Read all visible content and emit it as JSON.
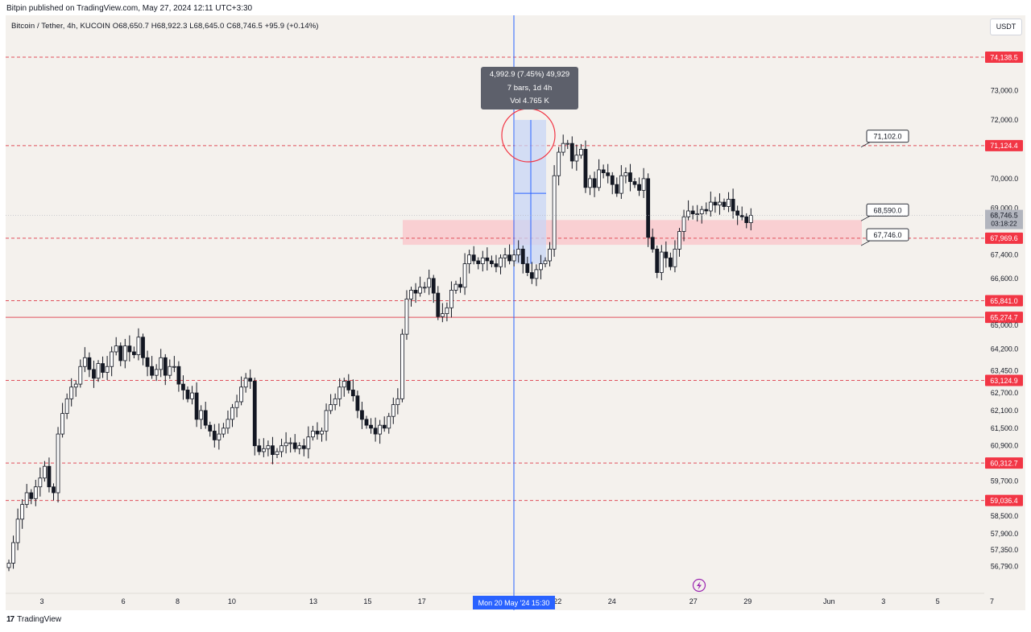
{
  "publish_line": "Bitpin published on TradingView.com, May 27, 2024 12:11 UTC+3:30",
  "symbol_line": "Bitcoin / Tether, 4h, KUCOIN  O68,650.7  H68,922.3  L68,645.0  C68,746.5  +95.9 (+0.14%)",
  "currency": "USDT",
  "footer_brand": "TradingView",
  "footer_logo": "17",
  "measure": {
    "line1": "4,992.9 (7.45%) 49,929",
    "line2": "7 bars, 1d 4h",
    "line3": "Vol 4.765 K"
  },
  "crosshair_date_label": "Mon 20 May '24   15:30",
  "current_price": {
    "value": "68,746.5",
    "countdown": "03:18:22"
  },
  "colors": {
    "accent_red": "#f23645",
    "dashed_red": "#e0505b",
    "zone_fill": "#f9c9cc",
    "measure_fill": "#c8d6f5",
    "crosshair_blue": "#2962ff",
    "candle": "#131722",
    "background": "#f4f1ed"
  },
  "icons": {
    "flash": "flash-icon"
  },
  "chart_data": {
    "type": "candlestick",
    "symbol": "Bitcoin / Tether",
    "timeframe": "4h",
    "exchange": "KUCOIN",
    "ohlc_last": {
      "open": 68650.7,
      "high": 68922.3,
      "low": 68645.0,
      "close": 68746.5,
      "change": 95.9,
      "change_pct": 0.14
    },
    "y_axis": {
      "ticks": [
        "73,000.0",
        "72,000.0",
        "70,000.0",
        "69,000.0",
        "67,400.0",
        "66,600.0",
        "65,000.0",
        "64,200.0",
        "63,450.0",
        "62,700.0",
        "62,100.0",
        "61,500.0",
        "60,900.0",
        "59,700.0",
        "58,500.0",
        "57,900.0",
        "57,350.0",
        "56,790.0"
      ],
      "range": [
        56500,
        74500
      ]
    },
    "x_axis": {
      "ticks": [
        "3",
        "6",
        "8",
        "10",
        "13",
        "15",
        "17",
        "22",
        "24",
        "27",
        "29",
        "Jun",
        "3",
        "5",
        "7"
      ],
      "range_start": "2024-05-01",
      "range_end": "2024-06-07"
    },
    "horizontal_levels": [
      {
        "price": 74138.5,
        "label": "74,138.5",
        "style": "dashed"
      },
      {
        "price": 71124.4,
        "label": "71,124.4",
        "style": "dashed"
      },
      {
        "price": 67969.6,
        "label": "67,969.6",
        "style": "dashed"
      },
      {
        "price": 65841.0,
        "label": "65,841.0",
        "style": "dashed"
      },
      {
        "price": 65274.7,
        "label": "65,274.7",
        "style": "solid"
      },
      {
        "price": 63124.9,
        "label": "63,124.9",
        "style": "dashed"
      },
      {
        "price": 60312.7,
        "label": "60,312.7",
        "style": "dashed"
      },
      {
        "price": 59036.4,
        "label": "59,036.4",
        "style": "dashed"
      }
    ],
    "callouts": [
      {
        "label": "71,102.0",
        "price": 71102.0
      },
      {
        "label": "68,590.0",
        "price": 68590.0
      },
      {
        "label": "67,746.0",
        "price": 67746.0
      }
    ],
    "zone": {
      "from": 67746.0,
      "to": 68590.0
    },
    "candles_close": [
      56900,
      57600,
      58400,
      58900,
      59300,
      59100,
      59500,
      59800,
      60200,
      59500,
      59300,
      61300,
      62000,
      62500,
      62900,
      63000,
      63600,
      63900,
      63500,
      63200,
      63700,
      63400,
      63600,
      64100,
      64300,
      63800,
      64300,
      64100,
      64000,
      64600,
      63900,
      63600,
      63300,
      63500,
      63900,
      63300,
      63600,
      63600,
      63000,
      62800,
      62500,
      62700,
      61800,
      62100,
      61600,
      61400,
      61100,
      61300,
      61500,
      61800,
      62200,
      62400,
      62900,
      63200,
      63100,
      60900,
      60700,
      60800,
      60900,
      60600,
      60700,
      60900,
      61000,
      61000,
      60800,
      60900,
      60800,
      61200,
      61400,
      61300,
      61400,
      62100,
      62300,
      62500,
      62900,
      63100,
      62800,
      62600,
      62100,
      61800,
      61600,
      61500,
      61300,
      61600,
      61500,
      61900,
      62300,
      62500,
      64700,
      65900,
      66200,
      66100,
      66300,
      66300,
      66600,
      66100,
      65300,
      65400,
      65600,
      66200,
      66400,
      66300,
      67100,
      67400,
      67200,
      67100,
      67300,
      67200,
      67100,
      67000,
      67300,
      67400,
      67200,
      67400,
      67600,
      67100,
      66800,
      66600,
      66900,
      67100,
      67200,
      67600,
      70100,
      70900,
      71200,
      71200,
      70600,
      70800,
      71000,
      69700,
      70000,
      69700,
      70300,
      70200,
      70100,
      69800,
      69500,
      70100,
      70200,
      69900,
      69800,
      69600,
      70000,
      68000,
      67600,
      66800,
      67500,
      67300,
      67000,
      67600,
      68200,
      68700,
      68900,
      68800,
      68800,
      68950,
      68900,
      69200,
      69100,
      69200,
      69050,
      69300,
      68900,
      68750,
      68700,
      68500,
      68750
    ]
  }
}
